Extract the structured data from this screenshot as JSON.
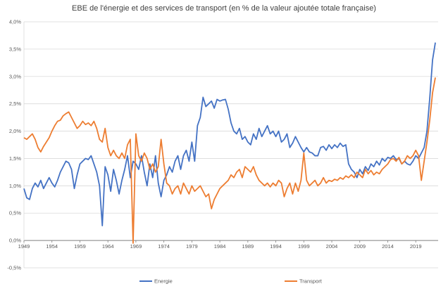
{
  "chart_data": {
    "type": "line",
    "title": "EBE de l'énergie et des services de transport (en % de la valeur ajoutée totale française)",
    "xlabel": "",
    "ylabel": "",
    "xlim": [
      1949,
      2023
    ],
    "ylim": [
      -0.5,
      4.0
    ],
    "x_ticks": [
      1949,
      1954,
      1959,
      1964,
      1969,
      1974,
      1979,
      1984,
      1989,
      1994,
      1999,
      2004,
      2009,
      2014,
      2019
    ],
    "y_ticks": [
      -0.5,
      0,
      0.5,
      1.0,
      1.5,
      2.0,
      2.5,
      3.0,
      3.5,
      4.0
    ],
    "y_tick_labels": [
      "-0,5%",
      "0,0%",
      "0,5%",
      "1,0%",
      "1,5%",
      "2,0%",
      "2,5%",
      "3,0%",
      "3,5%",
      "4,0%"
    ],
    "grid": true,
    "legend_position": "bottom",
    "series": [
      {
        "name": "Energie",
        "color": "#4472C4",
        "points": [
          [
            1949,
            0.95
          ],
          [
            1949.5,
            0.78
          ],
          [
            1950,
            0.75
          ],
          [
            1950.5,
            0.95
          ],
          [
            1951,
            1.05
          ],
          [
            1951.5,
            0.98
          ],
          [
            1952,
            1.1
          ],
          [
            1952.5,
            0.95
          ],
          [
            1953,
            1.05
          ],
          [
            1953.5,
            1.15
          ],
          [
            1954,
            1.05
          ],
          [
            1954.5,
            0.98
          ],
          [
            1955,
            1.1
          ],
          [
            1955.5,
            1.25
          ],
          [
            1956,
            1.35
          ],
          [
            1956.5,
            1.45
          ],
          [
            1957,
            1.42
          ],
          [
            1957.5,
            1.3
          ],
          [
            1958,
            0.95
          ],
          [
            1958.5,
            1.2
          ],
          [
            1959,
            1.4
          ],
          [
            1959.5,
            1.45
          ],
          [
            1960,
            1.5
          ],
          [
            1960.5,
            1.48
          ],
          [
            1961,
            1.55
          ],
          [
            1961.5,
            1.4
          ],
          [
            1962,
            1.25
          ],
          [
            1962.5,
            1.0
          ],
          [
            1963,
            0.27
          ],
          [
            1963.5,
            1.35
          ],
          [
            1964,
            1.2
          ],
          [
            1964.5,
            0.9
          ],
          [
            1965,
            1.3
          ],
          [
            1965.5,
            1.1
          ],
          [
            1966,
            0.85
          ],
          [
            1966.5,
            1.1
          ],
          [
            1967,
            1.3
          ],
          [
            1967.5,
            1.55
          ],
          [
            1968,
            1.15
          ],
          [
            1968.5,
            1.45
          ],
          [
            1969,
            1.4
          ],
          [
            1969.5,
            1.3
          ],
          [
            1970,
            1.55
          ],
          [
            1970.5,
            1.25
          ],
          [
            1971,
            1.0
          ],
          [
            1971.5,
            1.4
          ],
          [
            1972,
            1.15
          ],
          [
            1972.5,
            1.55
          ],
          [
            1973,
            1.05
          ],
          [
            1973.5,
            0.8
          ],
          [
            1974,
            1.1
          ],
          [
            1974.5,
            1.2
          ],
          [
            1975,
            1.35
          ],
          [
            1975.5,
            1.25
          ],
          [
            1976,
            1.45
          ],
          [
            1976.5,
            1.55
          ],
          [
            1977,
            1.3
          ],
          [
            1977.5,
            1.55
          ],
          [
            1978,
            1.65
          ],
          [
            1978.5,
            1.45
          ],
          [
            1979,
            1.8
          ],
          [
            1979.5,
            1.45
          ],
          [
            1980,
            2.1
          ],
          [
            1980.5,
            2.25
          ],
          [
            1981,
            2.62
          ],
          [
            1981.5,
            2.45
          ],
          [
            1982,
            2.5
          ],
          [
            1982.5,
            2.55
          ],
          [
            1983,
            2.42
          ],
          [
            1983.5,
            2.58
          ],
          [
            1984,
            2.55
          ],
          [
            1984.5,
            2.57
          ],
          [
            1985,
            2.58
          ],
          [
            1985.5,
            2.4
          ],
          [
            1986,
            2.15
          ],
          [
            1986.5,
            2.0
          ],
          [
            1987,
            1.95
          ],
          [
            1987.5,
            2.05
          ],
          [
            1988,
            1.85
          ],
          [
            1988.5,
            1.9
          ],
          [
            1989,
            1.8
          ],
          [
            1989.5,
            1.75
          ],
          [
            1990,
            1.95
          ],
          [
            1990.5,
            1.85
          ],
          [
            1991,
            2.05
          ],
          [
            1991.5,
            1.9
          ],
          [
            1992,
            2.0
          ],
          [
            1992.5,
            2.1
          ],
          [
            1993,
            1.95
          ],
          [
            1993.5,
            2.0
          ],
          [
            1994,
            1.9
          ],
          [
            1994.5,
            2.0
          ],
          [
            1995,
            1.8
          ],
          [
            1995.5,
            1.85
          ],
          [
            1996,
            1.95
          ],
          [
            1996.5,
            1.7
          ],
          [
            1997,
            1.78
          ],
          [
            1997.5,
            1.9
          ],
          [
            1998,
            1.8
          ],
          [
            1998.5,
            1.7
          ],
          [
            1999,
            1.62
          ],
          [
            1999.5,
            1.7
          ],
          [
            2000,
            1.62
          ],
          [
            2000.5,
            1.6
          ],
          [
            2001,
            1.55
          ],
          [
            2001.5,
            1.55
          ],
          [
            2002,
            1.7
          ],
          [
            2002.5,
            1.72
          ],
          [
            2003,
            1.65
          ],
          [
            2003.5,
            1.75
          ],
          [
            2004,
            1.68
          ],
          [
            2004.5,
            1.75
          ],
          [
            2005,
            1.7
          ],
          [
            2005.5,
            1.78
          ],
          [
            2006,
            1.72
          ],
          [
            2006.5,
            1.75
          ],
          [
            2007,
            1.4
          ],
          [
            2007.5,
            1.3
          ],
          [
            2008,
            1.25
          ],
          [
            2008.5,
            1.15
          ],
          [
            2009,
            1.3
          ],
          [
            2009.5,
            1.22
          ],
          [
            2010,
            1.35
          ],
          [
            2010.5,
            1.28
          ],
          [
            2011,
            1.4
          ],
          [
            2011.5,
            1.35
          ],
          [
            2012,
            1.45
          ],
          [
            2012.5,
            1.38
          ],
          [
            2013,
            1.5
          ],
          [
            2013.5,
            1.45
          ],
          [
            2014,
            1.52
          ],
          [
            2014.5,
            1.5
          ],
          [
            2015,
            1.55
          ],
          [
            2015.5,
            1.48
          ],
          [
            2016,
            1.5
          ],
          [
            2016.5,
            1.4
          ],
          [
            2017,
            1.45
          ],
          [
            2017.5,
            1.4
          ],
          [
            2018,
            1.38
          ],
          [
            2018.5,
            1.45
          ],
          [
            2019,
            1.55
          ],
          [
            2019.5,
            1.5
          ],
          [
            2020,
            1.6
          ],
          [
            2020.5,
            1.7
          ],
          [
            2021,
            2.0
          ],
          [
            2021.5,
            2.6
          ],
          [
            2022,
            3.3
          ],
          [
            2022.5,
            3.62
          ]
        ]
      },
      {
        "name": "Transport",
        "color": "#ED7D31",
        "points": [
          [
            1949,
            1.88
          ],
          [
            1949.5,
            1.85
          ],
          [
            1950,
            1.9
          ],
          [
            1950.5,
            1.95
          ],
          [
            1951,
            1.85
          ],
          [
            1951.5,
            1.7
          ],
          [
            1952,
            1.62
          ],
          [
            1952.5,
            1.72
          ],
          [
            1953,
            1.8
          ],
          [
            1953.5,
            1.88
          ],
          [
            1954,
            2.0
          ],
          [
            1954.5,
            2.1
          ],
          [
            1955,
            2.18
          ],
          [
            1955.5,
            2.2
          ],
          [
            1956,
            2.28
          ],
          [
            1956.5,
            2.32
          ],
          [
            1957,
            2.35
          ],
          [
            1957.5,
            2.25
          ],
          [
            1958,
            2.15
          ],
          [
            1958.5,
            2.05
          ],
          [
            1959,
            2.1
          ],
          [
            1959.5,
            2.18
          ],
          [
            1960,
            2.12
          ],
          [
            1960.5,
            2.15
          ],
          [
            1961,
            2.1
          ],
          [
            1961.5,
            2.18
          ],
          [
            1962,
            2.05
          ],
          [
            1962.5,
            1.85
          ],
          [
            1963,
            1.8
          ],
          [
            1963.5,
            2.05
          ],
          [
            1964,
            1.7
          ],
          [
            1964.5,
            1.55
          ],
          [
            1965,
            1.65
          ],
          [
            1965.5,
            1.55
          ],
          [
            1966,
            1.5
          ],
          [
            1966.5,
            1.6
          ],
          [
            1967,
            1.5
          ],
          [
            1967.5,
            1.75
          ],
          [
            1968,
            1.85
          ],
          [
            1968.5,
            -0.05
          ],
          [
            1969,
            1.95
          ],
          [
            1969.5,
            1.55
          ],
          [
            1970,
            1.45
          ],
          [
            1970.5,
            1.6
          ],
          [
            1971,
            1.5
          ],
          [
            1971.5,
            1.3
          ],
          [
            1972,
            1.4
          ],
          [
            1972.5,
            1.25
          ],
          [
            1973,
            1.35
          ],
          [
            1973.5,
            1.85
          ],
          [
            1974,
            1.4
          ],
          [
            1974.5,
            1.05
          ],
          [
            1975,
            1.0
          ],
          [
            1975.5,
            0.85
          ],
          [
            1976,
            0.95
          ],
          [
            1976.5,
            1.0
          ],
          [
            1977,
            0.85
          ],
          [
            1977.5,
            1.05
          ],
          [
            1978,
            0.95
          ],
          [
            1978.5,
            0.85
          ],
          [
            1979,
            1.0
          ],
          [
            1979.5,
            0.9
          ],
          [
            1980,
            0.95
          ],
          [
            1980.5,
            1.0
          ],
          [
            1981,
            0.9
          ],
          [
            1981.5,
            0.8
          ],
          [
            1982,
            0.85
          ],
          [
            1982.5,
            0.58
          ],
          [
            1983,
            0.75
          ],
          [
            1983.5,
            0.85
          ],
          [
            1984,
            0.95
          ],
          [
            1984.5,
            1.0
          ],
          [
            1985,
            1.05
          ],
          [
            1985.5,
            1.1
          ],
          [
            1986,
            1.2
          ],
          [
            1986.5,
            1.15
          ],
          [
            1987,
            1.25
          ],
          [
            1987.5,
            1.3
          ],
          [
            1988,
            1.15
          ],
          [
            1988.5,
            1.35
          ],
          [
            1989,
            1.3
          ],
          [
            1989.5,
            1.25
          ],
          [
            1990,
            1.35
          ],
          [
            1990.5,
            1.2
          ],
          [
            1991,
            1.1
          ],
          [
            1991.5,
            1.05
          ],
          [
            1992,
            1.0
          ],
          [
            1992.5,
            1.05
          ],
          [
            1993,
            0.98
          ],
          [
            1993.5,
            1.05
          ],
          [
            1994,
            1.0
          ],
          [
            1994.5,
            1.1
          ],
          [
            1995,
            1.05
          ],
          [
            1995.5,
            0.8
          ],
          [
            1996,
            0.95
          ],
          [
            1996.5,
            1.05
          ],
          [
            1997,
            0.85
          ],
          [
            1997.5,
            1.05
          ],
          [
            1998,
            0.9
          ],
          [
            1998.5,
            1.1
          ],
          [
            1999,
            1.6
          ],
          [
            1999.5,
            1.1
          ],
          [
            2000,
            1.0
          ],
          [
            2000.5,
            1.05
          ],
          [
            2001,
            1.1
          ],
          [
            2001.5,
            1.0
          ],
          [
            2002,
            1.05
          ],
          [
            2002.5,
            1.15
          ],
          [
            2003,
            1.05
          ],
          [
            2003.5,
            1.1
          ],
          [
            2004,
            1.08
          ],
          [
            2004.5,
            1.12
          ],
          [
            2005,
            1.1
          ],
          [
            2005.5,
            1.15
          ],
          [
            2006,
            1.12
          ],
          [
            2006.5,
            1.18
          ],
          [
            2007,
            1.15
          ],
          [
            2007.5,
            1.2
          ],
          [
            2008,
            1.15
          ],
          [
            2008.5,
            1.25
          ],
          [
            2009,
            1.2
          ],
          [
            2009.5,
            1.15
          ],
          [
            2010,
            1.3
          ],
          [
            2010.5,
            1.22
          ],
          [
            2011,
            1.28
          ],
          [
            2011.5,
            1.2
          ],
          [
            2012,
            1.25
          ],
          [
            2012.5,
            1.22
          ],
          [
            2013,
            1.3
          ],
          [
            2013.5,
            1.35
          ],
          [
            2014,
            1.4
          ],
          [
            2014.5,
            1.48
          ],
          [
            2015,
            1.5
          ],
          [
            2015.5,
            1.45
          ],
          [
            2016,
            1.52
          ],
          [
            2016.5,
            1.4
          ],
          [
            2017,
            1.45
          ],
          [
            2017.5,
            1.55
          ],
          [
            2018,
            1.5
          ],
          [
            2018.5,
            1.55
          ],
          [
            2019,
            1.65
          ],
          [
            2019.5,
            1.55
          ],
          [
            2020,
            1.1
          ],
          [
            2020.5,
            1.45
          ],
          [
            2021,
            1.8
          ],
          [
            2021.5,
            2.2
          ],
          [
            2022,
            2.7
          ],
          [
            2022.5,
            2.98
          ]
        ]
      }
    ]
  }
}
